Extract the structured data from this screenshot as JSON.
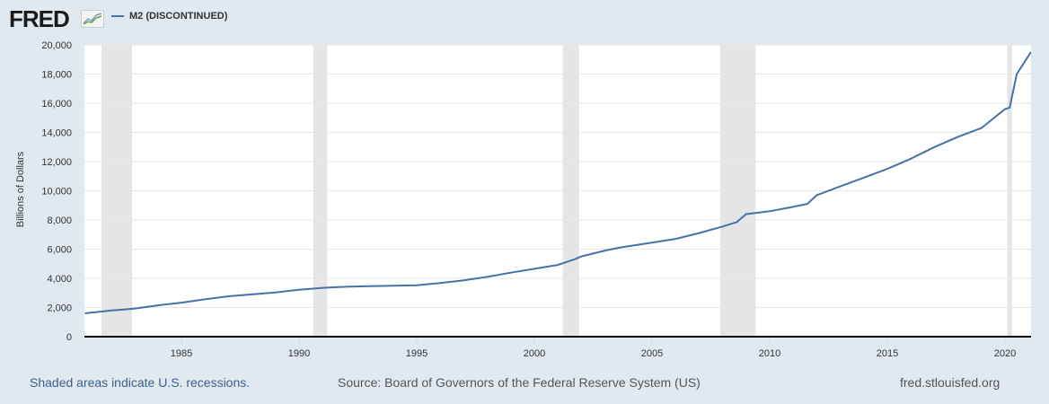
{
  "header": {
    "logo_text": "FRED",
    "logo_icon": "line-chart-icon",
    "series_label": "M2 (DISCONTINUED)",
    "series_color": "#4572a7"
  },
  "footer": {
    "recession_note": "Shaded areas indicate U.S. recessions.",
    "source": "Source: Board of Governors of the Federal Reserve System (US)",
    "site": "fred.stlouisfed.org"
  },
  "chart_data": {
    "type": "line",
    "title": "M2 (DISCONTINUED)",
    "xlabel": "",
    "ylabel": "Billions of Dollars",
    "ylim": [
      0,
      20000
    ],
    "xlim": [
      1980.9,
      2021.1
    ],
    "y_ticks": [
      "0",
      "2,000",
      "4,000",
      "6,000",
      "8,000",
      "10,000",
      "12,000",
      "14,000",
      "16,000",
      "18,000",
      "20,000"
    ],
    "x_ticks": [
      "1985",
      "1990",
      "1995",
      "2000",
      "2005",
      "2010",
      "2015",
      "2020"
    ],
    "grid": true,
    "legend_position": "top-left",
    "recessions": [
      [
        1981.6,
        1982.9
      ],
      [
        1990.6,
        1991.2
      ],
      [
        2001.2,
        2001.9
      ],
      [
        2007.9,
        2009.4
      ],
      [
        2020.1,
        2020.3
      ]
    ],
    "series": [
      {
        "name": "M2 (DISCONTINUED)",
        "color": "#4572a7",
        "x": [
          1980.9,
          1982,
          1983,
          1984,
          1985,
          1986,
          1987,
          1988,
          1989,
          1990,
          1991,
          1992,
          1993,
          1994,
          1995,
          1996,
          1997,
          1998,
          1999,
          2000,
          2001,
          2001.7,
          2002,
          2003,
          2003.6,
          2004,
          2005,
          2006,
          2007,
          2008,
          2008.6,
          2009,
          2010,
          2011,
          2011.6,
          2012,
          2013,
          2014,
          2015,
          2016,
          2017,
          2018,
          2019,
          2020.0,
          2020.2,
          2020.5,
          2021.1
        ],
        "values": [
          1600,
          1790,
          1920,
          2150,
          2330,
          2560,
          2770,
          2900,
          3030,
          3220,
          3350,
          3420,
          3460,
          3490,
          3520,
          3680,
          3860,
          4100,
          4390,
          4650,
          4920,
          5300,
          5500,
          5900,
          6100,
          6200,
          6450,
          6700,
          7100,
          7550,
          7850,
          8400,
          8600,
          8900,
          9100,
          9700,
          10300,
          10900,
          11500,
          12200,
          13000,
          13700,
          14300,
          15600,
          15700,
          18000,
          19500
        ]
      }
    ]
  }
}
